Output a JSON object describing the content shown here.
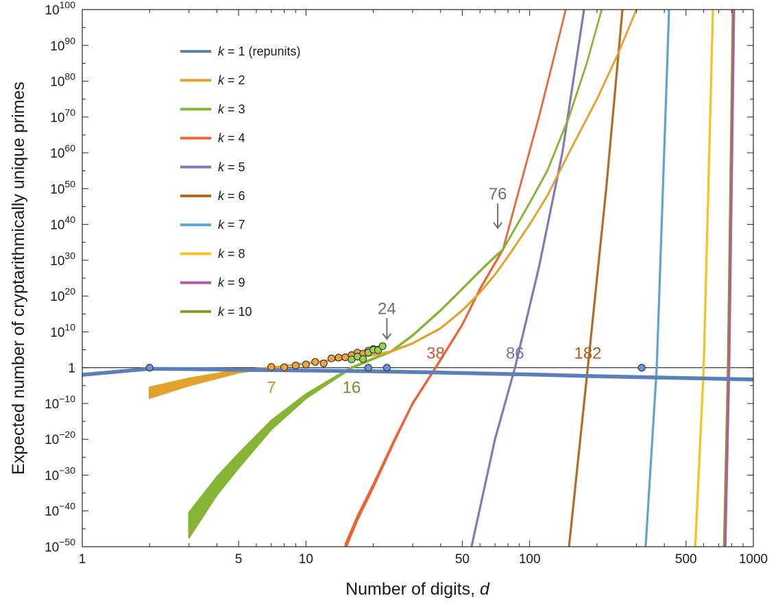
{
  "chart_data": {
    "type": "line",
    "title": "",
    "xlabel": "Number of digits, d",
    "ylabel": "Expected number of cryptarithmically unique primes",
    "x_scale": "log",
    "y_scale": "log",
    "xlim": [
      1,
      1000
    ],
    "ylim": [
      1e-50,
      1e+100
    ],
    "grid": false,
    "legend_position": "top-left",
    "x_ticks": [
      {
        "value": 1,
        "label": "1"
      },
      {
        "value": 5,
        "label": "5"
      },
      {
        "value": 10,
        "label": "10"
      },
      {
        "value": 50,
        "label": "50"
      },
      {
        "value": 100,
        "label": "100"
      },
      {
        "value": 500,
        "label": "500"
      },
      {
        "value": 1000,
        "label": "1000"
      }
    ],
    "y_ticks": [
      {
        "exp": 100,
        "base": "10",
        "sup": "100"
      },
      {
        "exp": 90,
        "base": "10",
        "sup": "90"
      },
      {
        "exp": 80,
        "base": "10",
        "sup": "80"
      },
      {
        "exp": 70,
        "base": "10",
        "sup": "70"
      },
      {
        "exp": 60,
        "base": "10",
        "sup": "60"
      },
      {
        "exp": 50,
        "base": "10",
        "sup": "50"
      },
      {
        "exp": 40,
        "base": "10",
        "sup": "40"
      },
      {
        "exp": 30,
        "base": "10",
        "sup": "30"
      },
      {
        "exp": 20,
        "base": "10",
        "sup": "20"
      },
      {
        "exp": 10,
        "base": "10",
        "sup": "10"
      },
      {
        "exp": 0,
        "base": "1",
        "sup": ""
      },
      {
        "exp": -10,
        "base": "10",
        "sup": "−10"
      },
      {
        "exp": -20,
        "base": "10",
        "sup": "−20"
      },
      {
        "exp": -30,
        "base": "10",
        "sup": "−30"
      },
      {
        "exp": -40,
        "base": "10",
        "sup": "−40"
      },
      {
        "exp": -50,
        "base": "10",
        "sup": "−50"
      }
    ],
    "reference_line_log10": 0,
    "series": [
      {
        "name": "k = 1 (repunits)",
        "k": "1",
        "suffix": " (repunits)",
        "color": "#5b7fba",
        "points_log10y": [
          [
            1,
            -2.0
          ],
          [
            2,
            -0.3
          ],
          [
            3,
            -0.4
          ],
          [
            5,
            -0.6
          ],
          [
            10,
            -0.8
          ],
          [
            20,
            -1.0
          ],
          [
            50,
            -1.5
          ],
          [
            100,
            -1.9
          ],
          [
            200,
            -2.4
          ],
          [
            500,
            -2.9
          ],
          [
            1000,
            -3.3
          ]
        ],
        "band_log10y_width": [
          [
            1,
            0.6
          ],
          [
            1000,
            0.6
          ]
        ]
      },
      {
        "name": "k = 2",
        "k": "2",
        "suffix": "",
        "color": "#e3a22c",
        "points_log10y": [
          [
            2,
            -7.0
          ],
          [
            3,
            -4.0
          ],
          [
            5,
            -1.0
          ],
          [
            7,
            0
          ],
          [
            10,
            1.2
          ],
          [
            15,
            2.5
          ],
          [
            20,
            3.5
          ],
          [
            24,
            4.5
          ],
          [
            30,
            6.8
          ],
          [
            40,
            11
          ],
          [
            50,
            16
          ],
          [
            60,
            21
          ],
          [
            70,
            26
          ],
          [
            80,
            31
          ],
          [
            100,
            40
          ],
          [
            120,
            48
          ],
          [
            150,
            60
          ],
          [
            200,
            75
          ],
          [
            250,
            88
          ],
          [
            300,
            100
          ]
        ],
        "band_log10y_width": [
          [
            2,
            3.0
          ],
          [
            3,
            2.0
          ],
          [
            5,
            0.8
          ],
          [
            7,
            0.2
          ],
          [
            300,
            0.2
          ]
        ]
      },
      {
        "name": "k = 3",
        "k": "3",
        "suffix": "",
        "color": "#86b536",
        "points_log10y": [
          [
            3,
            -44
          ],
          [
            4,
            -33
          ],
          [
            5,
            -26
          ],
          [
            7,
            -16
          ],
          [
            10,
            -8
          ],
          [
            13,
            -3.5
          ],
          [
            16,
            0
          ],
          [
            20,
            2.5
          ],
          [
            24,
            4.5
          ],
          [
            30,
            9
          ],
          [
            40,
            16
          ],
          [
            50,
            22
          ],
          [
            60,
            27
          ],
          [
            70,
            31
          ],
          [
            76,
            33
          ],
          [
            90,
            41
          ],
          [
            100,
            46
          ],
          [
            120,
            55
          ],
          [
            150,
            70
          ],
          [
            180,
            85
          ],
          [
            210,
            100
          ]
        ],
        "band_log10y_width": [
          [
            3,
            7
          ],
          [
            4,
            5
          ],
          [
            5,
            4
          ],
          [
            7,
            2.5
          ],
          [
            10,
            1.2
          ],
          [
            16,
            0.3
          ],
          [
            210,
            0.2
          ]
        ]
      },
      {
        "name": "k = 4",
        "k": "4",
        "suffix": "",
        "color": "#ec6335",
        "points_log10y": [
          [
            15,
            -50
          ],
          [
            17,
            -42
          ],
          [
            20,
            -33
          ],
          [
            25,
            -20
          ],
          [
            30,
            -10
          ],
          [
            38,
            0
          ],
          [
            50,
            12
          ],
          [
            60,
            22
          ],
          [
            76,
            33
          ],
          [
            90,
            50
          ],
          [
            110,
            70
          ],
          [
            130,
            88
          ],
          [
            145,
            100
          ]
        ],
        "band_log10y_width": [
          [
            15,
            1.5
          ],
          [
            20,
            1.0
          ],
          [
            30,
            0.4
          ],
          [
            145,
            0.2
          ]
        ]
      },
      {
        "name": "k = 5",
        "k": "5",
        "suffix": "",
        "color": "#8577b8",
        "points_log10y": [
          [
            55,
            -50
          ],
          [
            70,
            -20
          ],
          [
            86,
            0
          ],
          [
            110,
            28
          ],
          [
            140,
            60
          ],
          [
            175,
            100
          ]
        ]
      },
      {
        "name": "k = 6",
        "k": "6",
        "suffix": "",
        "color": "#b46b23",
        "points_log10y": [
          [
            150,
            -50
          ],
          [
            182,
            0
          ],
          [
            220,
            50
          ],
          [
            260,
            100
          ]
        ]
      },
      {
        "name": "k = 7",
        "k": "7",
        "suffix": "",
        "color": "#5ea3d1",
        "points_log10y": [
          [
            330,
            -50
          ],
          [
            370,
            0
          ],
          [
            420,
            100
          ]
        ]
      },
      {
        "name": "k = 8",
        "k": "8",
        "suffix": "",
        "color": "#f5c31b",
        "points_log10y": [
          [
            550,
            -50
          ],
          [
            600,
            0
          ],
          [
            660,
            100
          ]
        ]
      },
      {
        "name": "k = 9",
        "k": "9",
        "suffix": "",
        "color": "#b05aa8",
        "points_log10y": [
          [
            750,
            -50
          ],
          [
            780,
            0
          ],
          [
            820,
            100
          ]
        ]
      },
      {
        "name": "k = 10",
        "k": "10",
        "suffix": "",
        "color": "#8a991e",
        "points_log10y": [
          [
            740,
            -50
          ],
          [
            770,
            0
          ],
          [
            810,
            100
          ]
        ]
      }
    ],
    "markers": [
      {
        "series": "k = 1 (repunits)",
        "fill": "#6b93d6",
        "points_log10y": [
          [
            2,
            0
          ],
          [
            19,
            0
          ],
          [
            23,
            0
          ],
          [
            317,
            0
          ]
        ]
      },
      {
        "series": "k = 2",
        "fill": "#f2a33a",
        "points_log10y": [
          [
            7,
            0.2
          ],
          [
            8,
            0.1
          ],
          [
            9,
            0.6
          ],
          [
            10,
            0.9
          ],
          [
            11,
            1.6
          ],
          [
            12,
            1.2
          ],
          [
            13,
            2.6
          ],
          [
            14,
            2.8
          ],
          [
            15,
            2.9
          ],
          [
            16,
            3.5
          ],
          [
            17,
            4.2
          ],
          [
            18,
            3.9
          ],
          [
            19,
            4.7
          ],
          [
            20,
            5.2
          ],
          [
            21,
            5.0
          ]
        ]
      },
      {
        "series": "k = 3",
        "fill": "#9ad444",
        "points_log10y": [
          [
            16,
            2.3
          ],
          [
            17,
            3.1
          ],
          [
            18,
            2.4
          ],
          [
            19,
            4.2
          ],
          [
            20,
            5.0
          ],
          [
            21,
            4.9
          ],
          [
            22,
            6.0
          ]
        ]
      }
    ],
    "annotations": [
      {
        "text": "24",
        "x": 23,
        "log10y": 15,
        "color": "#6e6e6e",
        "arrow": true,
        "arrow_to_log10y": 8
      },
      {
        "text": "76",
        "x": 72,
        "log10y": 47,
        "color": "#6e6e6e",
        "arrow": true,
        "arrow_to_log10y": 39
      },
      {
        "text": "7",
        "x": 7,
        "log10y": -7,
        "color": "#c8922a",
        "arrow": false
      },
      {
        "text": "16",
        "x": 16,
        "log10y": -7,
        "color": "#6f8f2a",
        "arrow": false
      },
      {
        "text": "38",
        "x": 38,
        "log10y": 2.5,
        "color": "#cf5a32",
        "arrow": false
      },
      {
        "text": "86",
        "x": 86,
        "log10y": 2.5,
        "color": "#7d6fae",
        "arrow": false
      },
      {
        "text": "182",
        "x": 182,
        "log10y": 2.5,
        "color": "#a55f22",
        "arrow": false
      }
    ]
  }
}
